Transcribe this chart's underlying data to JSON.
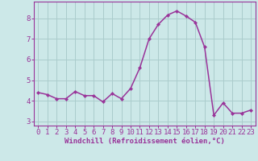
{
  "x": [
    0,
    1,
    2,
    3,
    4,
    5,
    6,
    7,
    8,
    9,
    10,
    11,
    12,
    13,
    14,
    15,
    16,
    17,
    18,
    19,
    20,
    21,
    22,
    23
  ],
  "y": [
    4.4,
    4.3,
    4.1,
    4.1,
    4.45,
    4.25,
    4.25,
    3.95,
    4.35,
    4.1,
    4.6,
    5.6,
    7.0,
    7.7,
    8.15,
    8.35,
    8.1,
    7.8,
    6.6,
    3.3,
    3.9,
    3.4,
    3.4,
    3.55
  ],
  "line_color": "#993399",
  "marker_color": "#993399",
  "bg_color": "#cce8e8",
  "grid_color": "#aacccc",
  "xlabel": "Windchill (Refroidissement éolien,°C)",
  "xlim": [
    -0.5,
    23.5
  ],
  "ylim": [
    2.8,
    8.8
  ],
  "yticks": [
    3,
    4,
    5,
    6,
    7,
    8
  ],
  "xticks": [
    0,
    1,
    2,
    3,
    4,
    5,
    6,
    7,
    8,
    9,
    10,
    11,
    12,
    13,
    14,
    15,
    16,
    17,
    18,
    19,
    20,
    21,
    22,
    23
  ],
  "xlabel_fontsize": 6.5,
  "tick_fontsize": 6.5,
  "line_width": 1.1,
  "marker_size": 2.2,
  "spine_color": "#993399"
}
